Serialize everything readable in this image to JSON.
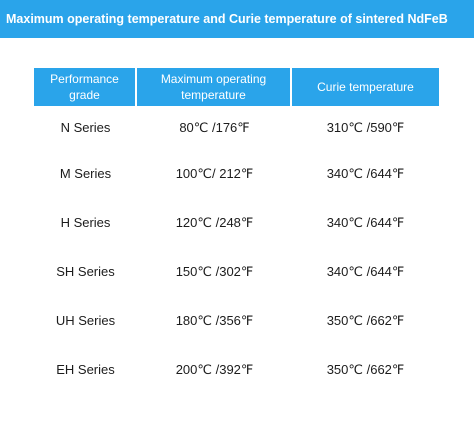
{
  "title": "Maximum operating temperature and Curie temperature of sintered NdFeB",
  "colors": {
    "accent": "#2aa4ea",
    "header_text": "#ffffff",
    "body_text": "#1c1c1c"
  },
  "table": {
    "headers": [
      "Performance grade",
      "Maximum operating temperature",
      "Curie temperature"
    ],
    "rows": [
      [
        "N Series",
        "80℃ /176℉",
        "310℃ /590℉"
      ],
      [
        "M Series",
        "100℃/ 212℉",
        "340℃ /644℉"
      ],
      [
        "H Series",
        "120℃ /248℉",
        "340℃ /644℉"
      ],
      [
        "SH Series",
        "150℃ /302℉",
        "340℃ /644℉"
      ],
      [
        "UH Series",
        "180℃ /356℉",
        "350℃ /662℉"
      ],
      [
        "EH Series",
        "200℃ /392℉",
        "350℃ /662℉"
      ]
    ]
  }
}
